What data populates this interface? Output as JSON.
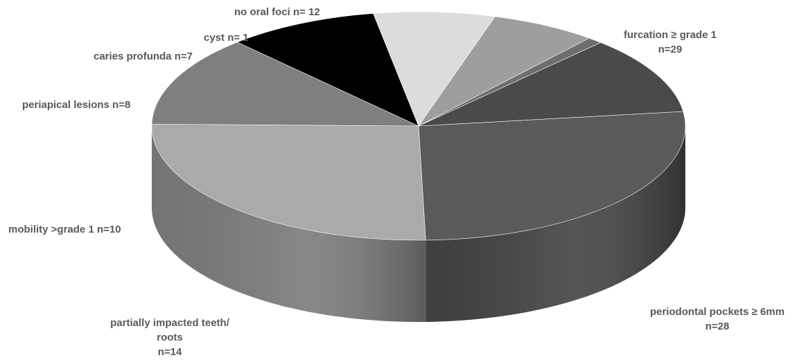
{
  "chart_data": {
    "type": "pie",
    "slices": [
      {
        "label": "furcation ≥ grade 1 n=29",
        "value": 29,
        "color": "#5a5a5a",
        "side": "#424242"
      },
      {
        "label": "periodontal pockets ≥ 6mm n=28",
        "value": 28,
        "color": "#aaaaaa",
        "side": "#7a7a7a"
      },
      {
        "label": "partially impacted teeth/ roots n=14",
        "value": 14,
        "color": "#7f7f7f",
        "side": "#5c5c5c"
      },
      {
        "label": "mobility >grade 1 n=10",
        "value": 10,
        "color": "#000000",
        "side": "#0a0a0a"
      },
      {
        "label": "periapical lesions n=8",
        "value": 8,
        "color": "#dcdcdc",
        "side": "#b8b8b8"
      },
      {
        "label": "caries profunda n=7",
        "value": 7,
        "color": "#9e9e9e",
        "side": "#808080"
      },
      {
        "label": "cyst n= 1",
        "value": 1,
        "color": "#6e6e6e",
        "side": "#505050"
      },
      {
        "label": "no oral foci n= 12",
        "value": 12,
        "color": "#4a4a4a",
        "side": "#3a3a3a"
      }
    ]
  },
  "labels": {
    "furcation": [
      "furcation ≥ grade 1",
      "n=29"
    ],
    "pockets": [
      "periodontal pockets ≥ 6mm",
      "n=28"
    ],
    "impacted": [
      "partially impacted teeth/",
      "roots",
      "n=14"
    ],
    "mobility": "mobility >grade 1 n=10",
    "periapical": "periapical lesions n=8",
    "caries": "caries profunda n=7",
    "cyst": "cyst n= 1",
    "no_foci": "no oral foci n= 12"
  }
}
